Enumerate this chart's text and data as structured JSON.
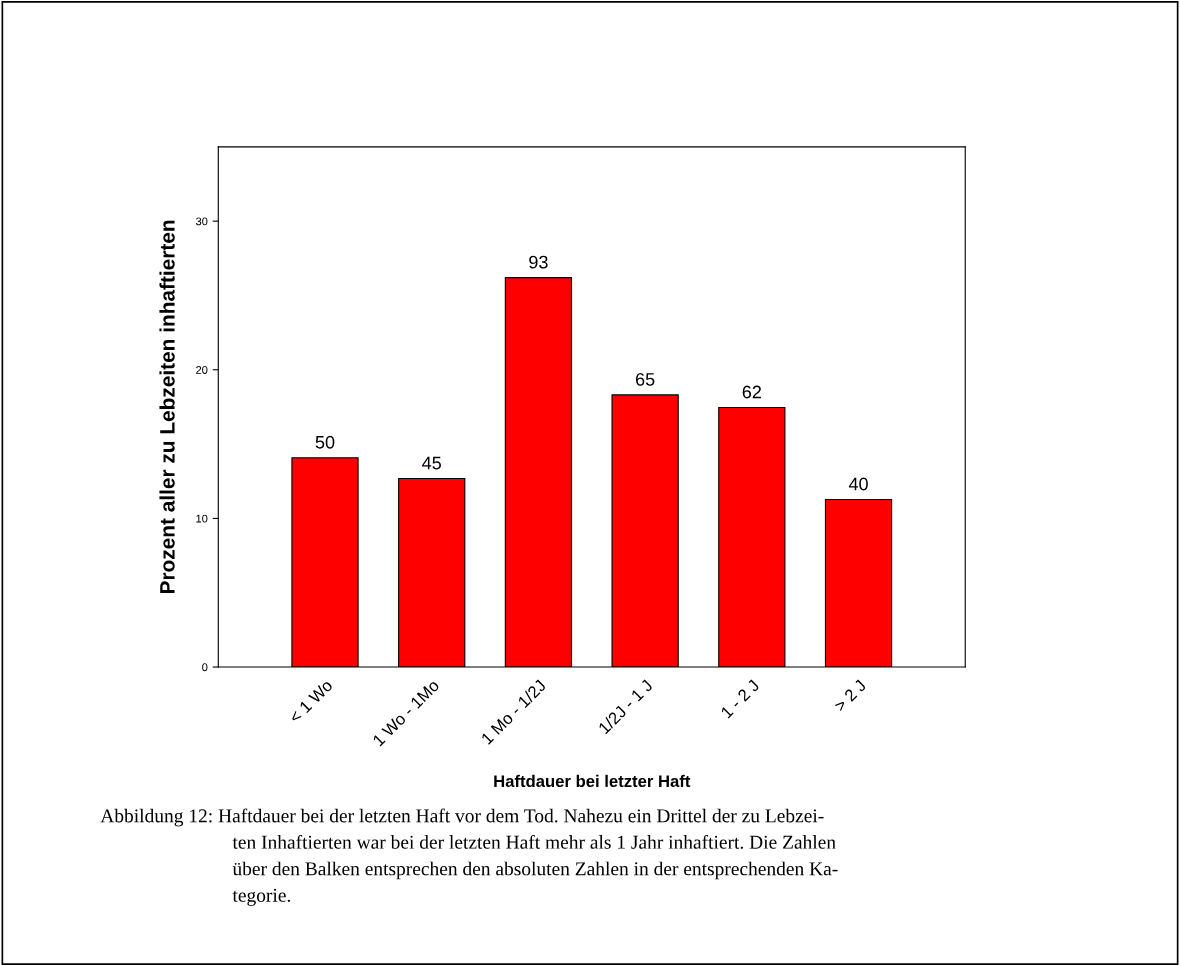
{
  "chart_data": {
    "type": "bar",
    "xlabel": "Haftdauer bei letzter Haft",
    "ylabel": "Prozent aller zu Lebzeiten inhaftierten",
    "categories": [
      "< 1 Wo",
      "1 Wo - 1Mo",
      "1 Mo - 1/2J",
      "1/2J - 1 J",
      "1 - 2 J",
      "> 2 J"
    ],
    "values": [
      14.08,
      12.68,
      26.2,
      18.31,
      17.46,
      11.27
    ],
    "color": "#ff0000",
    "ylim": [
      0,
      35
    ],
    "yticks": [
      0,
      10,
      20,
      30
    ],
    "grid": false,
    "annotations": [
      {
        "text": "50",
        "x": "< 1 Wo",
        "y": 14.08
      },
      {
        "text": "45",
        "x": "1 Wo - 1Mo",
        "y": 12.68
      },
      {
        "text": "93",
        "x": "1 Mo - 1/2J",
        "y": 26.2
      },
      {
        "text": "65",
        "x": "1/2J - 1 J",
        "y": 18.31
      },
      {
        "text": "62",
        "x": "1 - 2 J",
        "y": 17.46
      },
      {
        "text": "40",
        "x": "> 2 J",
        "y": 11.27
      },
      "Abbildung 12: Haftdauer bei der letzten Haft vor dem Tod. Nahezu ein Drittel der zu Lebzei-",
      "ten Inhaftierten war bei der letzten Haft mehr als 1 Jahr inhaftiert. Die Zahlen",
      "über den Balken entsprechen den absoluten Zahlen in der entsprechenden Ka-",
      "tegorie."
    ]
  }
}
